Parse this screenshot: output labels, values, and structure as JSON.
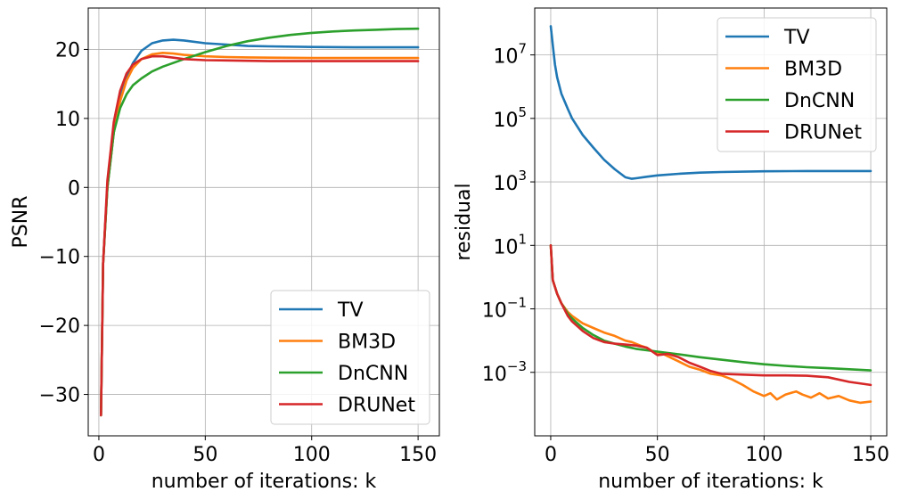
{
  "chart_data": [
    {
      "type": "line",
      "xlabel": "number of iterations: k",
      "ylabel": "PSNR",
      "xlim": [
        -5,
        160
      ],
      "ylim": [
        -36,
        26
      ],
      "xticks": [
        0,
        50,
        100,
        150
      ],
      "xtick_labels": [
        "0",
        "50",
        "100",
        "150"
      ],
      "yticks": [
        -30,
        -20,
        -10,
        0,
        10,
        20
      ],
      "ytick_labels": [
        "−30",
        "−20",
        "−10",
        "0",
        "10",
        "20"
      ],
      "grid": true,
      "legend_position": "lower-right",
      "series": [
        {
          "name": "TV",
          "color": "#1f77b4",
          "x": [
            1,
            2,
            4,
            7,
            10,
            13,
            16,
            20,
            25,
            30,
            35,
            40,
            50,
            60,
            70,
            80,
            100,
            120,
            150
          ],
          "y": [
            -33,
            -11,
            0,
            8,
            13,
            16,
            18,
            19.8,
            20.9,
            21.3,
            21.4,
            21.3,
            20.9,
            20.7,
            20.5,
            20.45,
            20.35,
            20.3,
            20.3
          ]
        },
        {
          "name": "BM3D",
          "color": "#ff7f0e",
          "x": [
            1,
            2,
            4,
            7,
            10,
            13,
            16,
            20,
            25,
            30,
            35,
            40,
            50,
            60,
            70,
            80,
            100,
            120,
            150
          ],
          "y": [
            -33,
            -11,
            0,
            8,
            12.5,
            15.5,
            17.3,
            18.6,
            19.3,
            19.5,
            19.4,
            19.2,
            19.0,
            18.9,
            18.85,
            18.8,
            18.75,
            18.75,
            18.75
          ]
        },
        {
          "name": "DnCNN",
          "color": "#2ca02c",
          "x": [
            1,
            2,
            4,
            7,
            10,
            13,
            16,
            20,
            25,
            30,
            40,
            50,
            60,
            70,
            80,
            90,
            100,
            110,
            120,
            130,
            140,
            150
          ],
          "y": [
            -33,
            -11,
            0,
            8,
            11.5,
            13.5,
            14.8,
            15.8,
            16.8,
            17.5,
            18.6,
            19.6,
            20.5,
            21.2,
            21.7,
            22.1,
            22.4,
            22.6,
            22.75,
            22.85,
            22.95,
            23.0
          ]
        },
        {
          "name": "DRUNet",
          "color": "#d62728",
          "x": [
            1,
            2,
            4,
            7,
            10,
            13,
            16,
            20,
            25,
            30,
            35,
            40,
            50,
            60,
            70,
            80,
            100,
            120,
            150
          ],
          "y": [
            -33,
            -11,
            1,
            9.5,
            14,
            16.5,
            17.8,
            18.6,
            19.0,
            19.0,
            18.8,
            18.6,
            18.45,
            18.4,
            18.35,
            18.3,
            18.3,
            18.3,
            18.3
          ]
        }
      ]
    },
    {
      "type": "line",
      "xlabel": "number of iterations: k",
      "ylabel": "residual",
      "yscale": "log",
      "xlim": [
        -7.5,
        157.5
      ],
      "ylim": [
        1e-05,
        300000000
      ],
      "xticks": [
        0,
        50,
        100,
        150
      ],
      "xtick_labels": [
        "0",
        "50",
        "100",
        "150"
      ],
      "yticks": [
        0.001,
        0.1,
        10,
        1000,
        100000,
        10000000
      ],
      "ytick_labels": [
        {
          "base": "10",
          "exp": "−3"
        },
        {
          "base": "10",
          "exp": "−1"
        },
        {
          "base": "10",
          "exp": "1"
        },
        {
          "base": "10",
          "exp": "3"
        },
        {
          "base": "10",
          "exp": "5"
        },
        {
          "base": "10",
          "exp": "7"
        }
      ],
      "grid": true,
      "legend_position": "upper-right",
      "series": [
        {
          "name": "TV",
          "color": "#1f77b4",
          "x": [
            0,
            1,
            2,
            3,
            5,
            8,
            10,
            15,
            20,
            25,
            30,
            35,
            38,
            40,
            45,
            50,
            60,
            70,
            80,
            100,
            120,
            150
          ],
          "y": [
            80000000,
            20000000,
            5000000,
            2000000,
            600000,
            200000,
            100000,
            30000,
            12000,
            5000,
            2500,
            1400,
            1250,
            1300,
            1450,
            1600,
            1800,
            1950,
            2050,
            2150,
            2200,
            2200
          ]
        },
        {
          "name": "BM3D",
          "color": "#ff7f0e",
          "x": [
            0,
            1,
            3,
            5,
            8,
            10,
            15,
            20,
            25,
            30,
            35,
            38,
            42,
            45,
            48,
            52,
            55,
            60,
            65,
            70,
            75,
            80,
            85,
            90,
            95,
            100,
            103,
            106,
            110,
            115,
            118,
            122,
            126,
            130,
            135,
            140,
            145,
            150
          ],
          "y": [
            10,
            0.8,
            0.3,
            0.15,
            0.08,
            0.06,
            0.035,
            0.025,
            0.018,
            0.014,
            0.01,
            0.009,
            0.007,
            0.006,
            0.0045,
            0.004,
            0.0032,
            0.0022,
            0.0015,
            0.0012,
            0.0009,
            0.0008,
            0.0006,
            0.0004,
            0.00025,
            0.00018,
            0.00022,
            0.00014,
            0.0002,
            0.00025,
            0.0002,
            0.00016,
            0.00022,
            0.00015,
            0.00018,
            0.00013,
            0.00011,
            0.00012
          ]
        },
        {
          "name": "DnCNN",
          "color": "#2ca02c",
          "x": [
            0,
            1,
            3,
            5,
            8,
            10,
            15,
            20,
            25,
            30,
            35,
            40,
            50,
            60,
            70,
            80,
            90,
            100,
            110,
            120,
            130,
            140,
            150
          ],
          "y": [
            10,
            0.8,
            0.3,
            0.15,
            0.07,
            0.05,
            0.025,
            0.015,
            0.01,
            0.008,
            0.0065,
            0.0055,
            0.0045,
            0.0037,
            0.003,
            0.0025,
            0.0021,
            0.0018,
            0.0016,
            0.00145,
            0.00135,
            0.00125,
            0.00115
          ]
        },
        {
          "name": "DRUNet",
          "color": "#d62728",
          "x": [
            0,
            1,
            3,
            5,
            8,
            10,
            15,
            20,
            25,
            30,
            35,
            40,
            45,
            50,
            55,
            60,
            65,
            70,
            75,
            80,
            90,
            100,
            110,
            120,
            130,
            140,
            150
          ],
          "y": [
            10,
            0.8,
            0.3,
            0.15,
            0.06,
            0.04,
            0.02,
            0.012,
            0.009,
            0.008,
            0.0075,
            0.007,
            0.006,
            0.0035,
            0.0038,
            0.003,
            0.002,
            0.0015,
            0.0011,
            0.0009,
            0.00085,
            0.0008,
            0.0008,
            0.00078,
            0.0007,
            0.0005,
            0.0004
          ]
        }
      ]
    }
  ]
}
